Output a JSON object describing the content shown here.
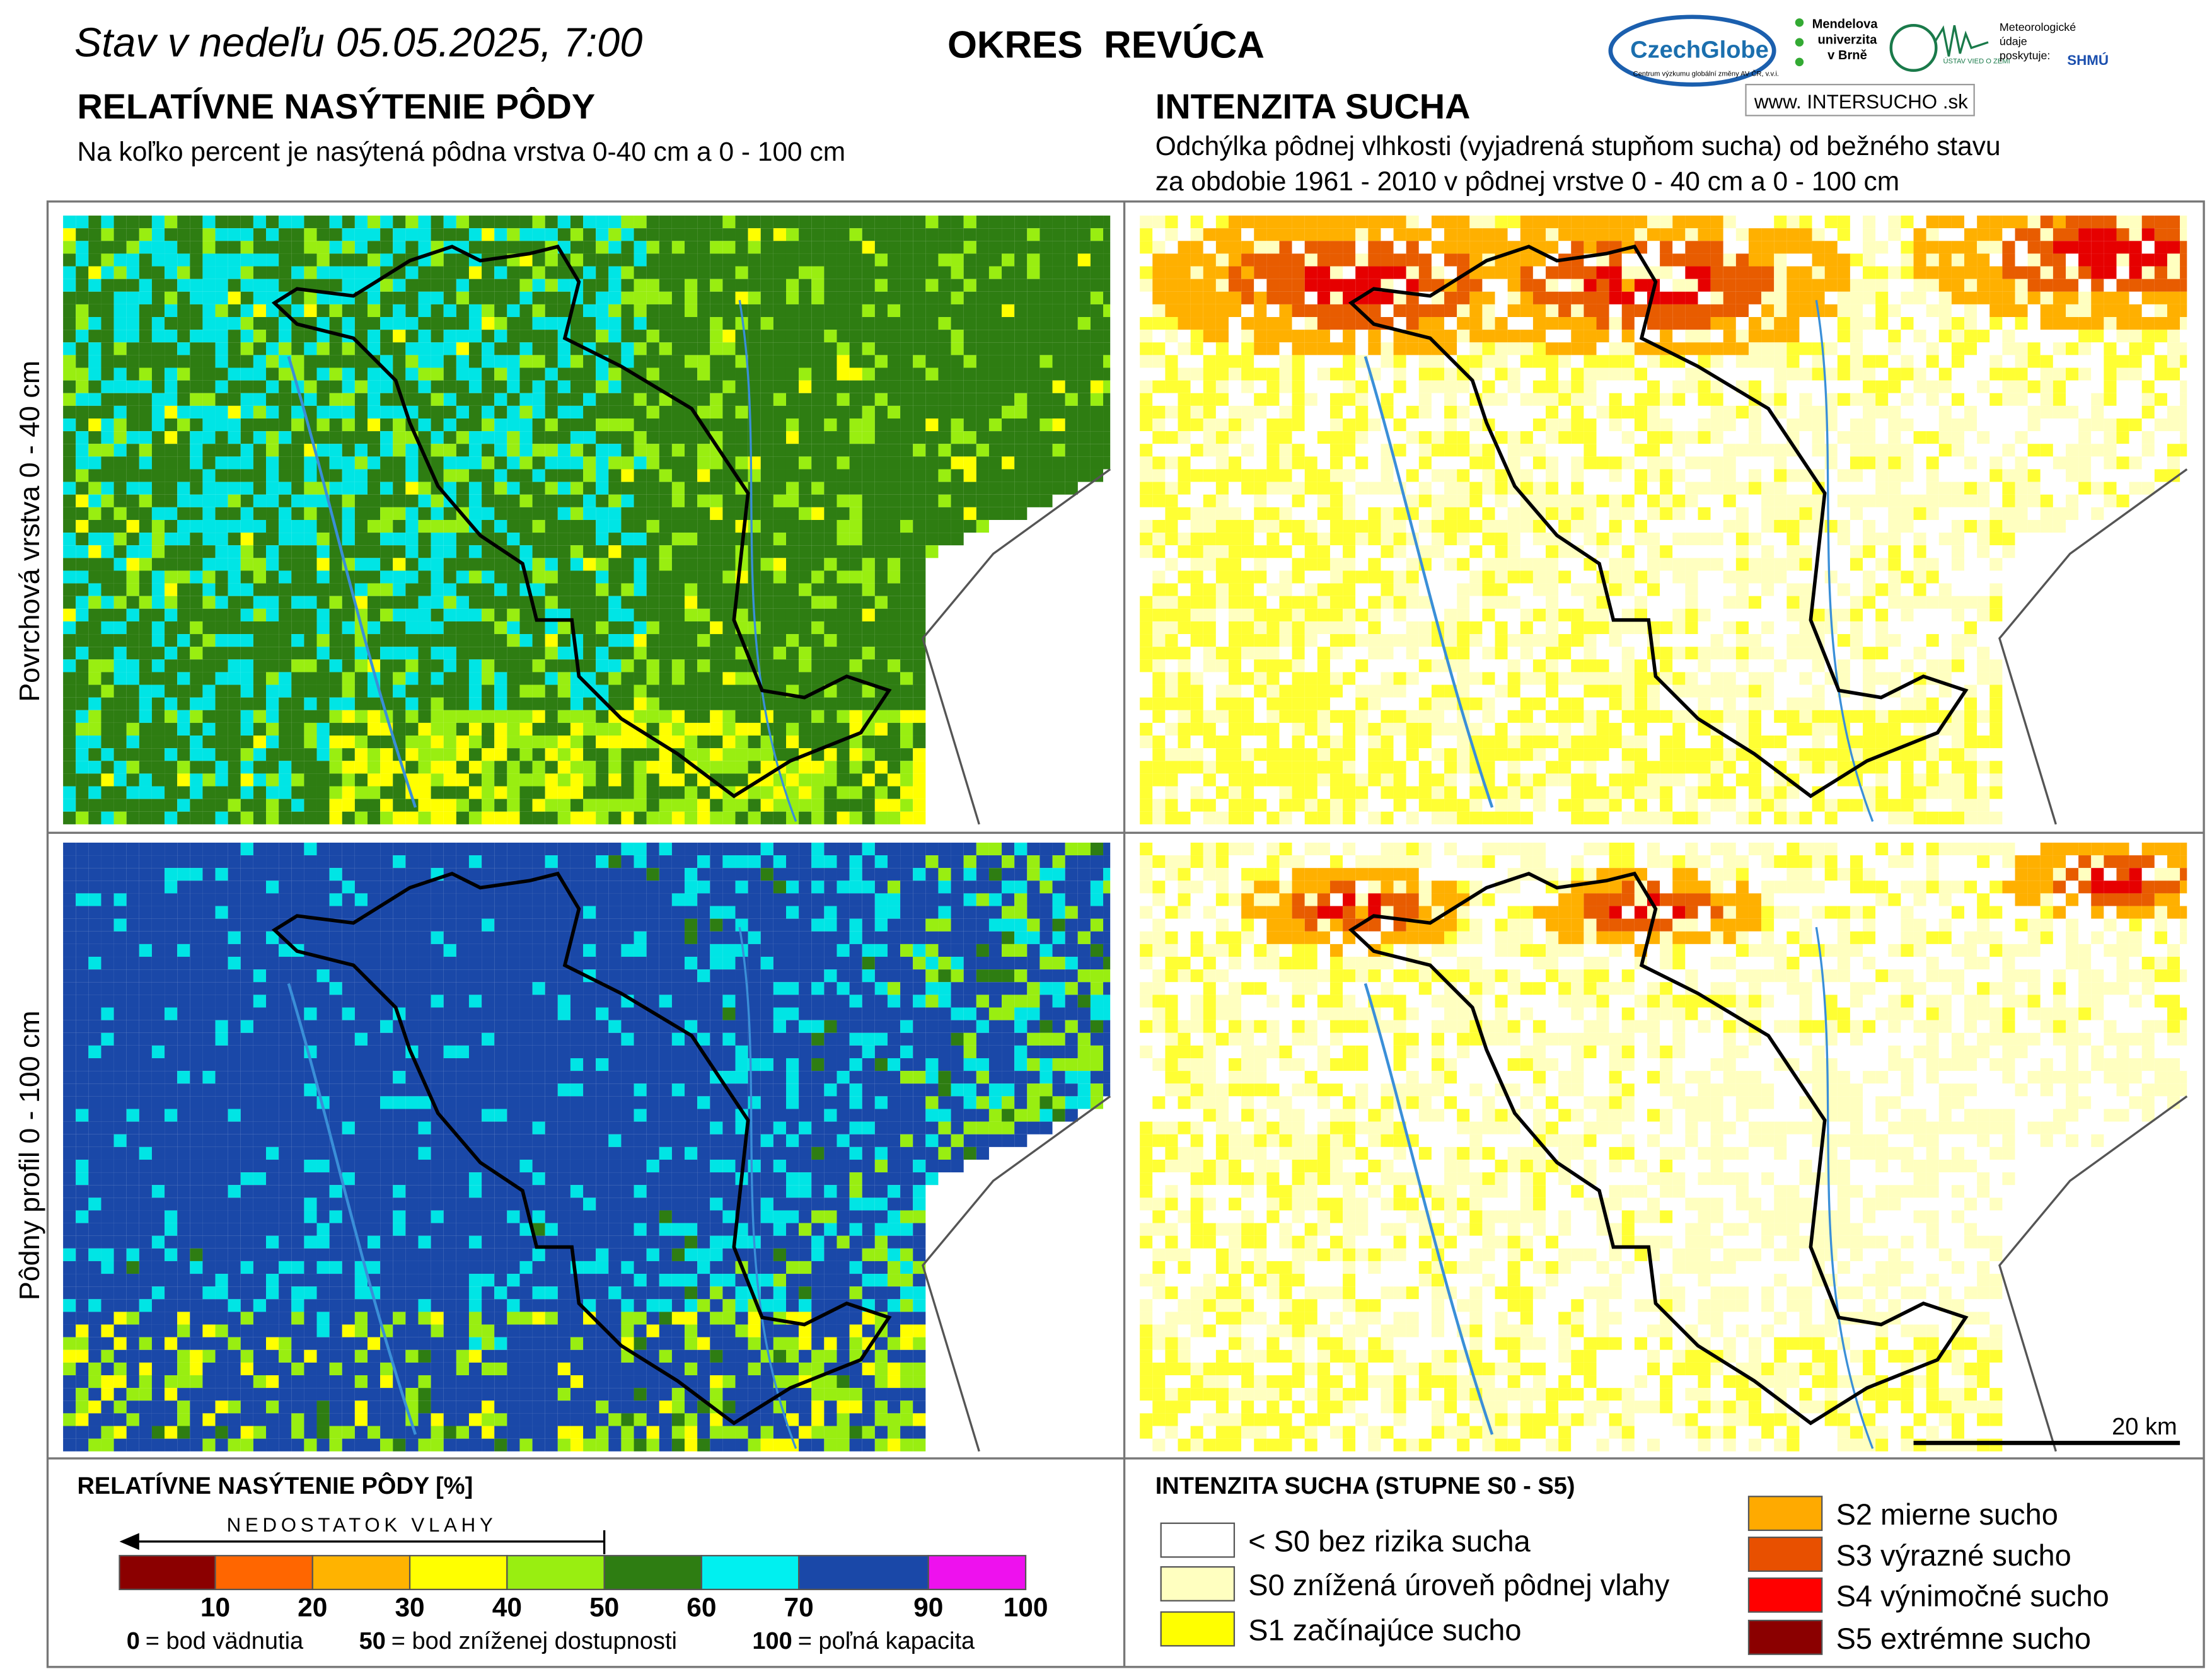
{
  "header": {
    "date": "Stav v nedeľu 05.05.2025, 7:00",
    "district": "OKRES  REVÚCA",
    "logos": {
      "czechglobe": "CzechGlobe",
      "czechglobe_sub": "Centrum výzkumu globální změny AV ČR, v.v.i.",
      "mendelu": [
        "Mendelova",
        "univerzita",
        "v Brně"
      ],
      "uvz": "ÚSTAV VIED O ZEMI",
      "meteo": [
        "Meteorologické",
        "údaje",
        "poskytuje:"
      ],
      "shmu": "SHMÚ",
      "web": "www. INTERSUCHO .sk"
    }
  },
  "left_panel": {
    "title": "RELATÍVNE NASÝTENIE PÔDY",
    "subtitle": "Na koľko percent je nasýtená pôdna vrstva 0-40 cm a 0 - 100 cm"
  },
  "right_panel": {
    "title": "INTENZITA SUCHA",
    "subtitle": [
      "Odchýlka pôdnej vlhkosti (vyjadrená stupňom sucha) od bežného stavu",
      "za obdobie 1961 - 2010 v pôdnej vrstve 0 - 40 cm a 0 - 100 cm"
    ]
  },
  "row_labels": [
    "Povrchová vrstva 0 - 40 cm",
    "Pôdny profil 0 - 100 cm"
  ],
  "scale_bar": "20 km",
  "saturation_legend": {
    "title": "RELATÍVNE NASÝTENIE PÔDY [%]",
    "arrow_label": "NEDOSTATOK VLAHY",
    "colors": [
      "#8b0000",
      "#ff6600",
      "#ffb300",
      "#ffff00",
      "#99ee11",
      "#2e7d12",
      "#00f0f0",
      "#1a48a8",
      "#ee11ee"
    ],
    "ticks": [
      10,
      20,
      30,
      40,
      50,
      60,
      70,
      90,
      100
    ],
    "notes": [
      {
        "key": "0",
        "text": "= bod vädnutia"
      },
      {
        "key": "50",
        "text": "= bod zníženej dostupnosti"
      },
      {
        "key": "100",
        "text": "= poľná kapacita"
      }
    ]
  },
  "drought_legend": {
    "title": "INTENZITA SUCHA (STUPNE S0 - S5)",
    "items": [
      {
        "label": "< S0 bez rizika sucha",
        "color": "#ffffff"
      },
      {
        "label": "S0 znížená úroveň pôdnej vlahy",
        "color": "#ffffc0"
      },
      {
        "label": "S1 začínajúce sucho",
        "color": "#ffff00"
      },
      {
        "label": "S2 mierne sucho",
        "color": "#ffaa00"
      },
      {
        "label": "S3 výrazné sucho",
        "color": "#e85000"
      },
      {
        "label": "S4 výnimočné sucho",
        "color": "#ff0000"
      },
      {
        "label": "S5 extrémne sucho",
        "color": "#8b0000"
      }
    ]
  }
}
